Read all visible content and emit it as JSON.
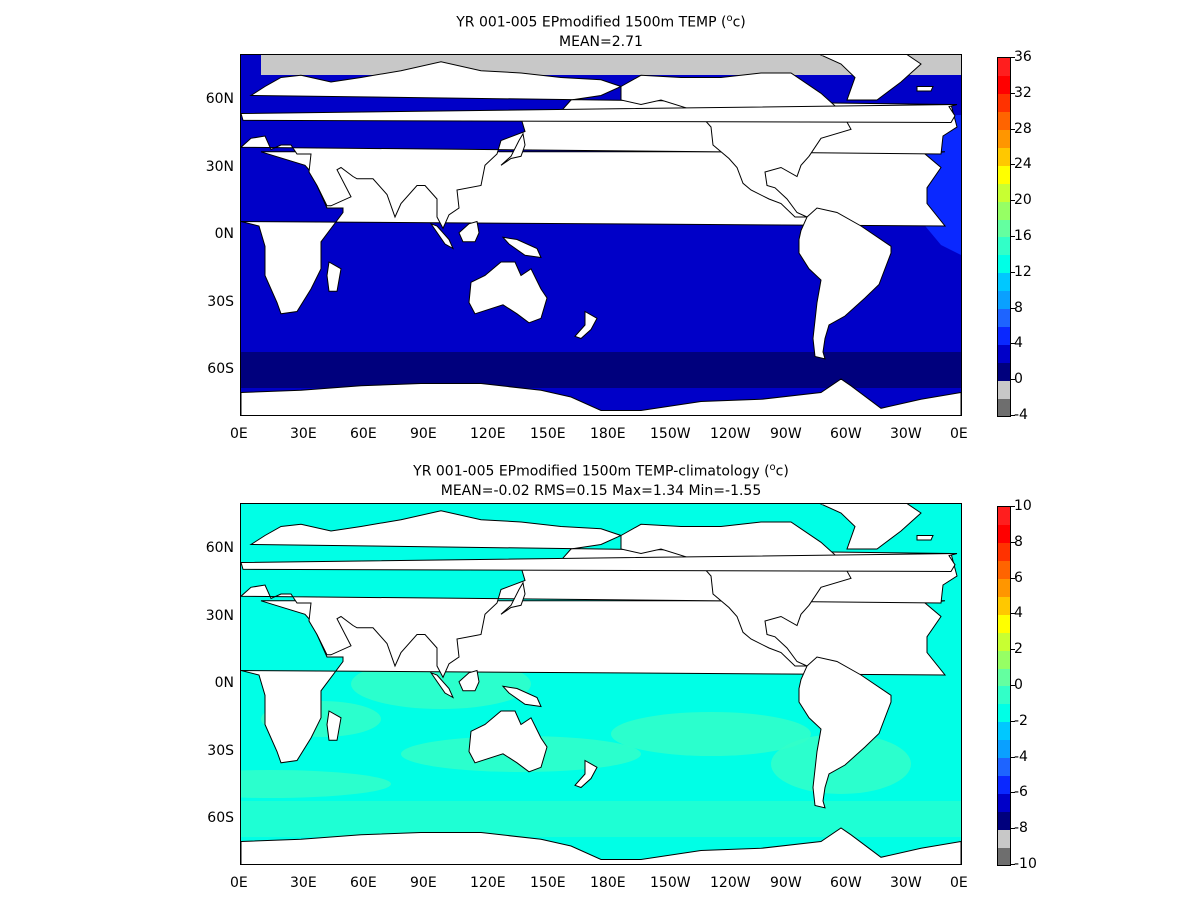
{
  "panels": [
    {
      "title_line1": "YR 001-005 EPmodified 1500m TEMP (",
      "title_sup": "o",
      "title_line1_end": "c)",
      "title_line2": "MEAN=2.71",
      "lat_labels": [
        "60N",
        "30N",
        "0N",
        "30S",
        "60S"
      ],
      "lon_labels": [
        "0E",
        "30E",
        "60E",
        "90E",
        "120E",
        "150E",
        "180E",
        "150W",
        "120W",
        "90W",
        "60W",
        "30W",
        "0E"
      ],
      "colorbar": {
        "labels": [
          "36",
          "32",
          "28",
          "24",
          "20",
          "16",
          "12",
          "8",
          "4",
          "0",
          "-4"
        ],
        "colors": [
          "#6e6e6e",
          "#c8c8c8",
          "#00007d",
          "#0000c8",
          "#0a28ff",
          "#1e64ff",
          "#0aa0ff",
          "#00c8ff",
          "#00ffe6",
          "#32ffc8",
          "#64ffa0",
          "#96ff64",
          "#c8ff32",
          "#ffff00",
          "#ffc800",
          "#ff9600",
          "#ff6400",
          "#ff3200",
          "#ff0000",
          "#ff1e1e"
        ]
      },
      "map_colors": {
        "ocean": "#0000c8",
        "deep": "#00007d",
        "shelf": "#0a28ff",
        "ice": "#c8c8c8"
      }
    },
    {
      "title_line1": "YR 001-005 EPmodified 1500m TEMP-climatology (",
      "title_sup": "o",
      "title_line1_end": "c)",
      "title_line2": "MEAN=-0.02   RMS=0.15   Max=1.34   Min=-1.55",
      "lat_labels": [
        "60N",
        "30N",
        "0N",
        "30S",
        "60S"
      ],
      "lon_labels": [
        "0E",
        "30E",
        "60E",
        "90E",
        "120E",
        "150E",
        "180E",
        "150W",
        "120W",
        "90W",
        "60W",
        "30W",
        "0E"
      ],
      "colorbar": {
        "labels": [
          "10",
          "8",
          "6",
          "4",
          "2",
          "0",
          "-2",
          "-4",
          "-6",
          "-8",
          "-10"
        ],
        "colors": [
          "#6e6e6e",
          "#c8c8c8",
          "#00007d",
          "#0000c8",
          "#0a28ff",
          "#1e64ff",
          "#0aa0ff",
          "#00c8ff",
          "#00ffe6",
          "#32ffc8",
          "#64ffa0",
          "#96ff64",
          "#c8ff32",
          "#ffff00",
          "#ffc800",
          "#ff9600",
          "#ff6400",
          "#ff3200",
          "#ff0000",
          "#ff1e1e"
        ]
      },
      "map_colors": {
        "ocean": "#00ffe6",
        "deep": "#32ffc8",
        "shelf": "#32ffc8",
        "ice": "#c8c8c8"
      }
    }
  ]
}
